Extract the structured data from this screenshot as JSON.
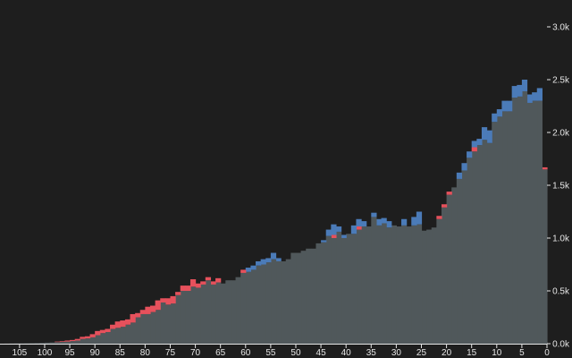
{
  "chart_data": {
    "type": "bar",
    "stacked": true,
    "x_axis": {
      "reversed": true,
      "ticks": [
        "105",
        "100",
        "95",
        "90",
        "85",
        "80",
        "75",
        "70",
        "65",
        "60",
        "55",
        "50",
        "45",
        "40",
        "35",
        "30",
        "25",
        "20",
        "15",
        "10",
        "5",
        "0"
      ],
      "range": [
        108,
        0
      ]
    },
    "y_axis": {
      "position": "right",
      "ticks": [
        "0.0k",
        "0.5k",
        "1.0k",
        "1.5k",
        "2.0k",
        "2.5k",
        "3.0k"
      ],
      "range": [
        0,
        3000
      ]
    },
    "grid": false,
    "colors": {
      "background": "#1e1e1e",
      "base": "#50585b",
      "excess_a": "#e6515c",
      "excess_b": "#4b7bb8",
      "text": "#e6e6e6"
    },
    "x": [
      0,
      1,
      2,
      3,
      4,
      5,
      6,
      7,
      8,
      9,
      10,
      11,
      12,
      13,
      14,
      15,
      16,
      17,
      18,
      19,
      20,
      21,
      22,
      23,
      24,
      25,
      26,
      27,
      28,
      29,
      30,
      31,
      32,
      33,
      34,
      35,
      36,
      37,
      38,
      39,
      40,
      41,
      42,
      43,
      44,
      45,
      46,
      47,
      48,
      49,
      50,
      51,
      52,
      53,
      54,
      55,
      56,
      57,
      58,
      59,
      60,
      61,
      62,
      63,
      64,
      65,
      66,
      67,
      68,
      69,
      70,
      71,
      72,
      73,
      74,
      75,
      76,
      77,
      78,
      79,
      80,
      81,
      82,
      83,
      84,
      85,
      86,
      87,
      88,
      89,
      90,
      91,
      92,
      93,
      94,
      95,
      96,
      97,
      98,
      99,
      100,
      101,
      102,
      103,
      104,
      105,
      106,
      107
    ],
    "series": [
      {
        "values": [
          1650,
          2300,
          2300,
          2280,
          2390,
          2340,
          2330,
          2200,
          2200,
          2150,
          2100,
          1900,
          1930,
          1880,
          1820,
          1760,
          1640,
          1560,
          1480,
          1410,
          1290,
          1180,
          1100,
          1080,
          1070,
          1130,
          1120,
          1110,
          1120,
          1110,
          1120,
          1100,
          1140,
          1120,
          1200,
          1110,
          1110,
          1080,
          1040,
          1040,
          1000,
          1060,
          1000,
          1020,
          960,
          950,
          900,
          900,
          880,
          860,
          860,
          800,
          780,
          780,
          800,
          770,
          750,
          740,
          700,
          680,
          670,
          630,
          600,
          600,
          570,
          580,
          560,
          600,
          560,
          530,
          540,
          500,
          500,
          460,
          380,
          370,
          390,
          320,
          300,
          280,
          280,
          250,
          200,
          180,
          160,
          150,
          140,
          110,
          100,
          80,
          60,
          50,
          45,
          30,
          25,
          20,
          18,
          15,
          12,
          10,
          8,
          6,
          5,
          4,
          3,
          3,
          2,
          1
        ]
      },
      {
        "values": [
          20,
          0,
          0,
          0,
          0,
          0,
          0,
          0,
          0,
          0,
          0,
          0,
          0,
          0,
          40,
          0,
          0,
          0,
          0,
          30,
          30,
          30,
          0,
          0,
          0,
          0,
          0,
          0,
          0,
          0,
          0,
          0,
          0,
          0,
          0,
          0,
          0,
          30,
          0,
          0,
          0,
          0,
          30,
          0,
          0,
          0,
          0,
          0,
          0,
          0,
          0,
          0,
          0,
          0,
          0,
          0,
          0,
          0,
          0,
          0,
          30,
          0,
          0,
          0,
          0,
          40,
          30,
          30,
          30,
          40,
          70,
          50,
          50,
          30,
          70,
          60,
          40,
          90,
          60,
          70,
          40,
          40,
          80,
          50,
          60,
          60,
          40,
          30,
          30,
          40,
          30,
          20,
          20,
          15,
          10,
          10,
          6,
          5,
          0,
          0,
          0,
          0,
          0,
          0,
          0,
          0,
          0,
          0
        ]
      },
      {
        "values": [
          0,
          120,
          80,
          80,
          110,
          110,
          110,
          100,
          100,
          70,
          80,
          120,
          120,
          60,
          60,
          60,
          70,
          60,
          0,
          0,
          0,
          0,
          0,
          0,
          0,
          120,
          80,
          0,
          60,
          0,
          0,
          60,
          50,
          60,
          40,
          0,
          50,
          70,
          80,
          0,
          30,
          50,
          100,
          60,
          20,
          0,
          0,
          0,
          0,
          0,
          0,
          0,
          0,
          30,
          60,
          40,
          50,
          40,
          40,
          40,
          0,
          0,
          0,
          0,
          0,
          0,
          0,
          0,
          0,
          0,
          0,
          0,
          0,
          0,
          0,
          0,
          0,
          0,
          0,
          0,
          0,
          0,
          0,
          0,
          0,
          0,
          0,
          0,
          0,
          0,
          0,
          0,
          0,
          0,
          0,
          0,
          0,
          0,
          0,
          0,
          0,
          0,
          0,
          0,
          0,
          0,
          0,
          0
        ]
      }
    ]
  }
}
